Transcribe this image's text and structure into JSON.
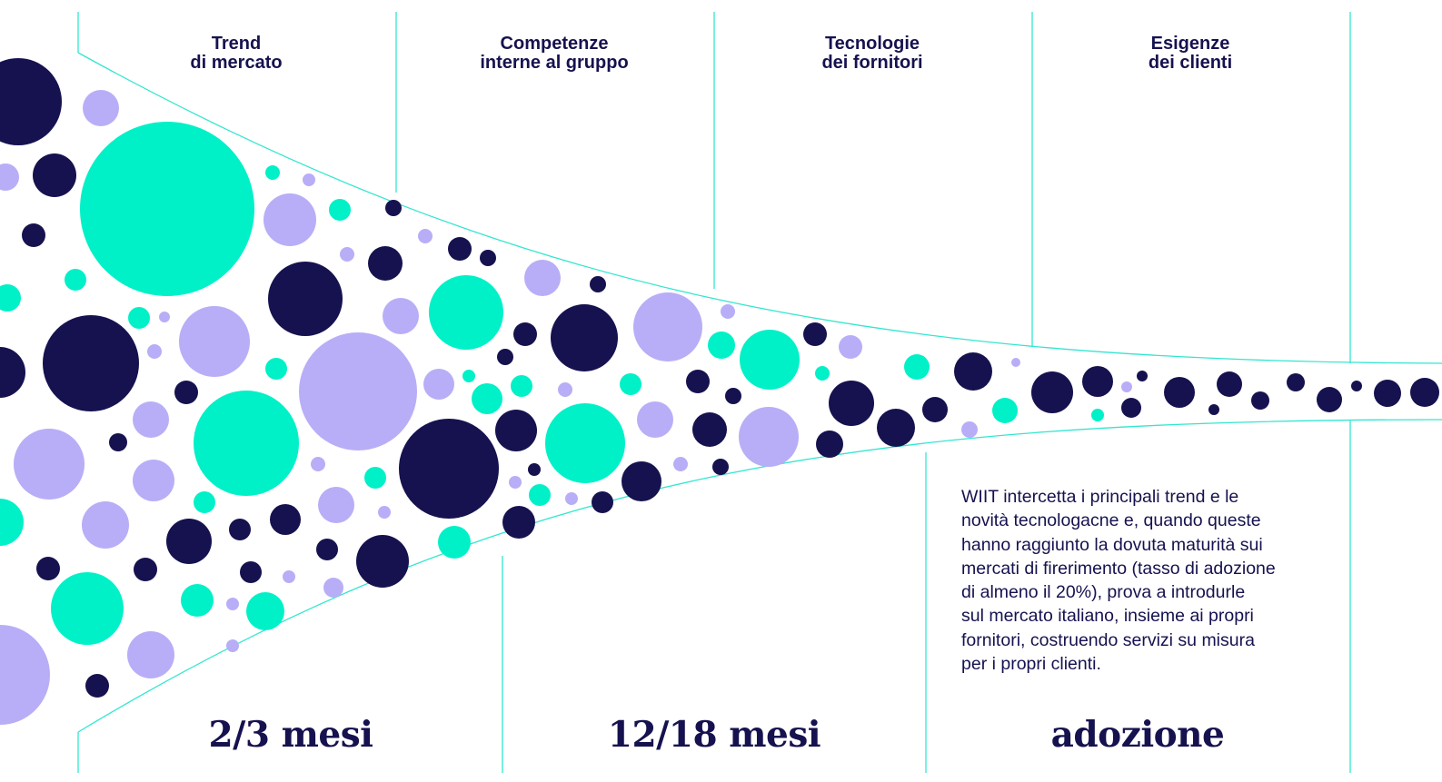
{
  "columns": [
    {
      "line1": "Trend",
      "line2": "di mercato"
    },
    {
      "line1": "Competenze",
      "line2": "interne al gruppo"
    },
    {
      "line1": "Tecnologie",
      "line2": "dei fornitori"
    },
    {
      "line1": "Esigenze",
      "line2": "dei clienti"
    }
  ],
  "phases": [
    "2/3 mesi",
    "12/18 mesi",
    "adozione"
  ],
  "description": [
    "WIIT intercetta i principali trend e le",
    "novità tecnologacne e, quando queste",
    "hanno raggiunto la dovuta maturità sui",
    "mercati di firerimento (tasso di adozione",
    "di almeno il 20%), prova a introdurle",
    "sul mercato italiano, insieme ai propri",
    "fornitori, costruendo servizi su misura",
    "per i propri clienti."
  ],
  "colors": {
    "navy": "#16124f",
    "teal": "#00f1c8",
    "lavender": "#b8aef7",
    "line": "#33e6cf"
  }
}
